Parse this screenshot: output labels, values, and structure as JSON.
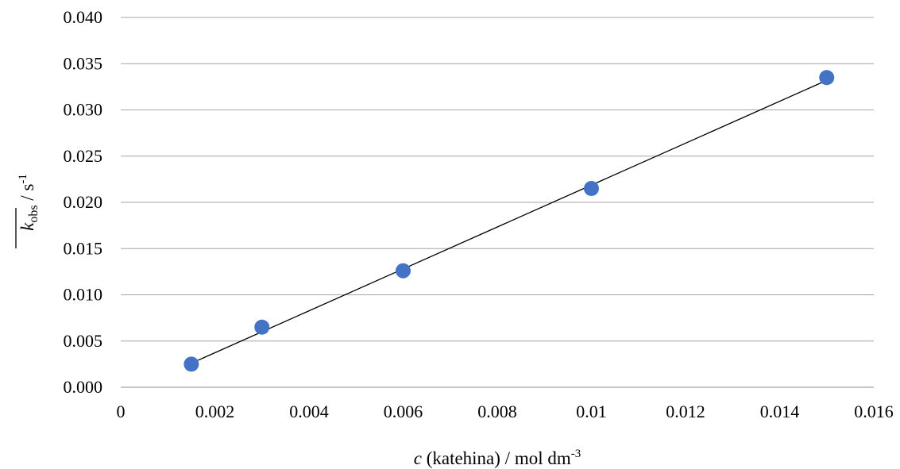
{
  "chart_data": {
    "type": "scatter",
    "xlabel": {
      "var": "c",
      "text": " (katehina) / mol dm",
      "sup": "-3"
    },
    "ylabel": {
      "var": "k",
      "sub": "obs",
      "text": " / s",
      "sup": "-1"
    },
    "xlim": [
      0,
      0.016
    ],
    "ylim": [
      0,
      0.04
    ],
    "x_ticks": [
      "0",
      "0.002",
      "0.004",
      "0.006",
      "0.008",
      "0.01",
      "0.012",
      "0.014",
      "0.016"
    ],
    "y_ticks": [
      "0.000",
      "0.005",
      "0.010",
      "0.015",
      "0.020",
      "0.025",
      "0.030",
      "0.035",
      "0.040"
    ],
    "grid": "horizontal",
    "series": [
      {
        "x": [
          0.0015,
          0.003,
          0.006,
          0.01,
          0.015
        ],
        "y": [
          0.0025,
          0.0065,
          0.0126,
          0.0215,
          0.0335
        ]
      }
    ],
    "trendline": {
      "type": "linear",
      "x": [
        0.0015,
        0.015
      ],
      "y": [
        0.0026,
        0.0332
      ]
    },
    "colors": {
      "marker": "#4472C4",
      "trendline": "#000000",
      "grid": "#A6A6A6"
    }
  }
}
